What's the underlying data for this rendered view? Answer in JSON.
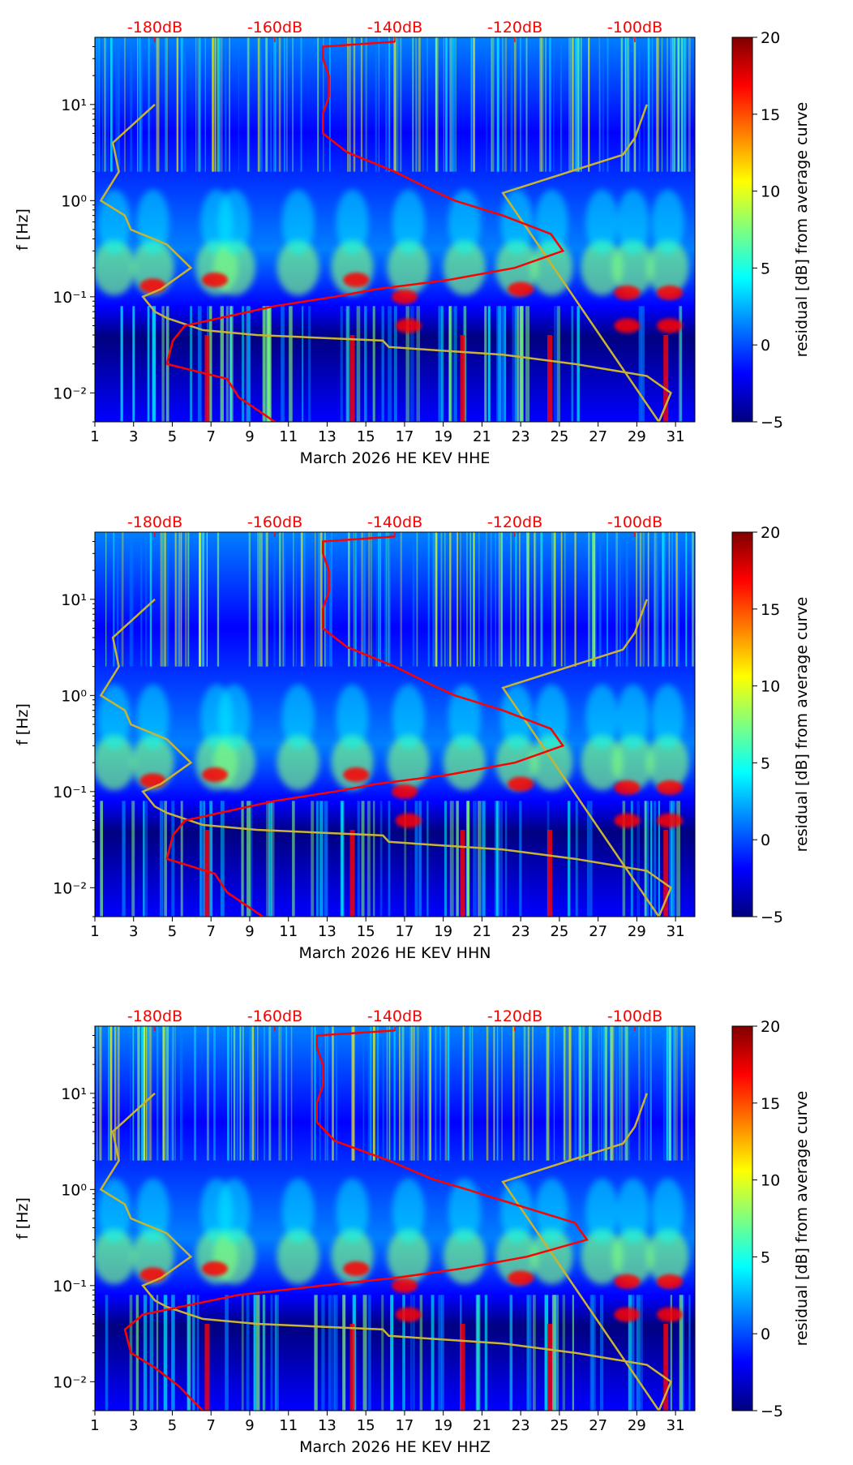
{
  "figure_colors": {
    "background": "#ffffff",
    "axis": "#000000",
    "red_curve": "#ff0000",
    "yellow_curve": "#c8b432",
    "top_labels": "#ff0000"
  },
  "colormap": {
    "name": "jet",
    "stops": [
      "#00007f",
      "#0000ff",
      "#007fff",
      "#00ffff",
      "#7fff7f",
      "#ffff00",
      "#ff7f00",
      "#ff0000",
      "#7f0000"
    ]
  },
  "chart_data": [
    {
      "type": "heatmap",
      "panel": "HHE",
      "xlabel": "March 2026 HE KEV  HHE",
      "ylabel": "f [Hz]",
      "xlim": [
        1,
        32
      ],
      "ylim": [
        0.005,
        50
      ],
      "yscale": "log",
      "x_ticks": [
        "1",
        "3",
        "5",
        "7",
        "9",
        "11",
        "13",
        "15",
        "17",
        "19",
        "21",
        "23",
        "25",
        "27",
        "29",
        "31"
      ],
      "y_ticks": [
        "10⁻²",
        "10⁻¹",
        "10⁰",
        "10¹"
      ],
      "top_axis_labels": [
        "-180dB",
        "-160dB",
        "-140dB",
        "-120dB",
        "-100dB"
      ],
      "top_axis_db": [
        -180,
        -160,
        -140,
        -120,
        -100
      ],
      "top_axis_range_db": [
        -190,
        -90
      ],
      "colorbar": {
        "label": "residual [dB] from average curve",
        "min": -5,
        "max": 20,
        "ticks": [
          "−5",
          "0",
          "5",
          "10",
          "15",
          "20"
        ]
      },
      "series": [
        {
          "name": "average power curve",
          "color": "red",
          "x_db": [
            -140,
            -152,
            -152,
            -151,
            -151,
            -152,
            -152,
            -148,
            -140,
            -134,
            -130,
            -122,
            -114,
            -112,
            -120,
            -131,
            -143,
            -150,
            -160,
            -175,
            -177,
            -178,
            -168,
            -166,
            -160
          ],
          "y_hz": [
            45,
            40,
            30,
            20,
            12,
            8,
            5,
            3.2,
            2,
            1.3,
            1,
            0.7,
            0.45,
            0.3,
            0.2,
            0.15,
            0.12,
            0.1,
            0.08,
            0.05,
            0.035,
            0.02,
            0.014,
            0.009,
            0.005
          ]
        },
        {
          "name": "noise model bounds",
          "color": "yellow",
          "x_db": [
            -180,
            -187,
            -186,
            -189,
            -185,
            -184,
            -178,
            -174,
            -179,
            -182,
            -180,
            -178,
            -172,
            -163,
            -142,
            -141,
            -122,
            -110,
            -98,
            -94,
            -96,
            -122,
            -102,
            -100,
            -98
          ],
          "y_hz": [
            10,
            4,
            2,
            1,
            0.7,
            0.5,
            0.35,
            0.2,
            0.12,
            0.1,
            0.07,
            0.06,
            0.045,
            0.04,
            0.035,
            0.03,
            0.025,
            0.02,
            0.015,
            0.01,
            0.005,
            1.2,
            3,
            4.5,
            10
          ]
        }
      ]
    },
    {
      "type": "heatmap",
      "panel": "HHN",
      "xlabel": "March 2026 HE KEV  HHN",
      "ylabel": "f [Hz]",
      "xlim": [
        1,
        32
      ],
      "ylim": [
        0.005,
        50
      ],
      "yscale": "log",
      "x_ticks": [
        "1",
        "3",
        "5",
        "7",
        "9",
        "11",
        "13",
        "15",
        "17",
        "19",
        "21",
        "23",
        "25",
        "27",
        "29",
        "31"
      ],
      "y_ticks": [
        "10⁻²",
        "10⁻¹",
        "10⁰",
        "10¹"
      ],
      "top_axis_labels": [
        "-180dB",
        "-160dB",
        "-140dB",
        "-120dB",
        "-100dB"
      ],
      "top_axis_db": [
        -180,
        -160,
        -140,
        -120,
        -100
      ],
      "top_axis_range_db": [
        -190,
        -90
      ],
      "colorbar": {
        "label": "residual [dB] from average curve",
        "min": -5,
        "max": 20,
        "ticks": [
          "−5",
          "0",
          "5",
          "10",
          "15",
          "20"
        ]
      },
      "series": [
        {
          "name": "average power curve",
          "color": "red",
          "x_db": [
            -140,
            -152,
            -152,
            -151,
            -151,
            -152,
            -152,
            -148,
            -140,
            -134,
            -130,
            -122,
            -114,
            -112,
            -120,
            -131,
            -143,
            -150,
            -160,
            -175,
            -177,
            -178,
            -170,
            -168,
            -162
          ],
          "y_hz": [
            45,
            40,
            30,
            20,
            12,
            8,
            5,
            3.2,
            2,
            1.3,
            1,
            0.7,
            0.45,
            0.3,
            0.2,
            0.15,
            0.12,
            0.1,
            0.08,
            0.05,
            0.035,
            0.02,
            0.014,
            0.009,
            0.005
          ]
        },
        {
          "name": "noise model bounds",
          "color": "yellow",
          "x_db": [
            -180,
            -187,
            -186,
            -189,
            -185,
            -184,
            -178,
            -174,
            -179,
            -182,
            -180,
            -178,
            -172,
            -163,
            -142,
            -141,
            -122,
            -110,
            -98,
            -94,
            -96,
            -122,
            -102,
            -100,
            -98
          ],
          "y_hz": [
            10,
            4,
            2,
            1,
            0.7,
            0.5,
            0.35,
            0.2,
            0.12,
            0.1,
            0.07,
            0.06,
            0.045,
            0.04,
            0.035,
            0.03,
            0.025,
            0.02,
            0.015,
            0.01,
            0.005,
            1.2,
            3,
            4.5,
            10
          ]
        }
      ]
    },
    {
      "type": "heatmap",
      "panel": "HHZ",
      "xlabel": "March 2026 HE KEV  HHZ",
      "ylabel": "f [Hz]",
      "xlim": [
        1,
        32
      ],
      "ylim": [
        0.005,
        50
      ],
      "yscale": "log",
      "x_ticks": [
        "1",
        "3",
        "5",
        "7",
        "9",
        "11",
        "13",
        "15",
        "17",
        "19",
        "21",
        "23",
        "25",
        "27",
        "29",
        "31"
      ],
      "y_ticks": [
        "10⁻²",
        "10⁻¹",
        "10⁰",
        "10¹"
      ],
      "top_axis_labels": [
        "-180dB",
        "-160dB",
        "-140dB",
        "-120dB",
        "-100dB"
      ],
      "top_axis_db": [
        -180,
        -160,
        -140,
        -120,
        -100
      ],
      "top_axis_range_db": [
        -190,
        -90
      ],
      "colorbar": {
        "label": "residual [dB] from average curve",
        "min": -5,
        "max": 20,
        "ticks": [
          "−5",
          "0",
          "5",
          "10",
          "15",
          "20"
        ]
      },
      "series": [
        {
          "name": "average power curve",
          "color": "red",
          "x_db": [
            -140,
            -153,
            -153,
            -152,
            -152,
            -153,
            -153,
            -150,
            -141,
            -134,
            -128,
            -120,
            -110,
            -108,
            -118,
            -129,
            -140,
            -152,
            -166,
            -182,
            -185,
            -184,
            -180,
            -176,
            -172
          ],
          "y_hz": [
            45,
            40,
            30,
            20,
            12,
            8,
            5,
            3.2,
            2,
            1.3,
            1,
            0.7,
            0.45,
            0.3,
            0.2,
            0.15,
            0.12,
            0.1,
            0.08,
            0.05,
            0.035,
            0.02,
            0.014,
            0.009,
            0.005
          ]
        },
        {
          "name": "noise model bounds",
          "color": "yellow",
          "x_db": [
            -180,
            -187,
            -186,
            -189,
            -185,
            -184,
            -178,
            -174,
            -179,
            -182,
            -180,
            -178,
            -172,
            -163,
            -142,
            -141,
            -122,
            -110,
            -98,
            -94,
            -96,
            -122,
            -102,
            -100,
            -98
          ],
          "y_hz": [
            10,
            4,
            2,
            1,
            0.7,
            0.5,
            0.35,
            0.2,
            0.12,
            0.1,
            0.07,
            0.06,
            0.045,
            0.04,
            0.035,
            0.03,
            0.025,
            0.02,
            0.015,
            0.01,
            0.005,
            1.2,
            3,
            4.5,
            10
          ]
        }
      ]
    }
  ]
}
